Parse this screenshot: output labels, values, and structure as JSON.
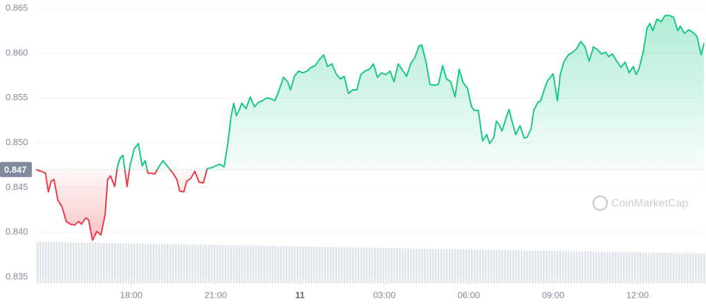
{
  "chart_data": {
    "type": "line",
    "watermark": "CoinMarketCap",
    "baseline": 0.847,
    "color_up": "#16c784",
    "color_down": "#ea3943",
    "grid": true,
    "ylim": [
      0.835,
      0.865
    ],
    "yticks": [
      0.835,
      {
        "value": 0.84,
        "label": "0.840"
      },
      0.845,
      {
        "value": 0.85,
        "label": "0.850"
      },
      0.855,
      {
        "value": 0.86,
        "label": "0.860"
      },
      0.865
    ],
    "xlim": [
      -9.39,
      14.36
    ],
    "xticks": [
      {
        "value": -6,
        "label": "18:00"
      },
      {
        "value": -3,
        "label": "21:00"
      },
      {
        "value": 0,
        "label": "11"
      },
      {
        "value": 3,
        "label": "03:00"
      },
      {
        "value": 6,
        "label": "06:00"
      },
      {
        "value": 9,
        "label": "09:00"
      },
      {
        "value": 12,
        "label": "12:00"
      }
    ],
    "x": [
      -9.39,
      -9.2,
      -9.05,
      -8.95,
      -8.85,
      -8.75,
      -8.61,
      -8.46,
      -8.31,
      -8.16,
      -8.02,
      -7.87,
      -7.77,
      -7.62,
      -7.52,
      -7.38,
      -7.23,
      -7.08,
      -6.93,
      -6.84,
      -6.74,
      -6.59,
      -6.49,
      -6.39,
      -6.3,
      -6.15,
      -6.05,
      -5.9,
      -5.75,
      -5.61,
      -5.51,
      -5.41,
      -5.31,
      -5.16,
      -5.02,
      -4.87,
      -4.72,
      -4.52,
      -4.38,
      -4.28,
      -4.13,
      -4.03,
      -3.89,
      -3.74,
      -3.59,
      -3.44,
      -3.3,
      -3.15,
      -3.0,
      -2.85,
      -2.7,
      -2.56,
      -2.46,
      -2.36,
      -2.26,
      -2.16,
      -2.07,
      -1.92,
      -1.77,
      -1.62,
      -1.48,
      -1.33,
      -1.18,
      -1.03,
      -0.89,
      -0.74,
      -0.59,
      -0.44,
      -0.34,
      -0.2,
      -0.05,
      0.1,
      0.25,
      0.39,
      0.54,
      0.69,
      0.84,
      0.98,
      1.13,
      1.28,
      1.43,
      1.57,
      1.72,
      1.87,
      2.02,
      2.16,
      2.31,
      2.46,
      2.61,
      2.75,
      2.9,
      3.05,
      3.2,
      3.34,
      3.49,
      3.64,
      3.79,
      3.93,
      4.08,
      4.23,
      4.33,
      4.48,
      4.62,
      4.77,
      4.92,
      5.07,
      5.21,
      5.36,
      5.51,
      5.66,
      5.8,
      5.95,
      6.1,
      6.2,
      6.34,
      6.49,
      6.64,
      6.74,
      6.89,
      6.98,
      7.08,
      7.18,
      7.33,
      7.43,
      7.57,
      7.67,
      7.82,
      7.97,
      8.07,
      8.21,
      8.31,
      8.46,
      8.56,
      8.7,
      8.8,
      9.0,
      9.15,
      9.25,
      9.39,
      9.54,
      9.69,
      9.84,
      9.98,
      10.13,
      10.28,
      10.43,
      10.57,
      10.72,
      10.87,
      10.97,
      11.11,
      11.26,
      11.41,
      11.56,
      11.7,
      11.85,
      11.95,
      12.05,
      12.2,
      12.34,
      12.44,
      12.54,
      12.69,
      12.84,
      12.98,
      13.13,
      13.28,
      13.43,
      13.52,
      13.67,
      13.82,
      13.97,
      14.11,
      14.26,
      14.36
    ],
    "values": [
      0.847,
      0.8468,
      0.8466,
      0.8445,
      0.8457,
      0.8459,
      0.8436,
      0.8428,
      0.8412,
      0.8409,
      0.8408,
      0.8412,
      0.8409,
      0.8416,
      0.8414,
      0.8391,
      0.8401,
      0.8397,
      0.842,
      0.8459,
      0.8463,
      0.8451,
      0.8474,
      0.8483,
      0.8486,
      0.8451,
      0.8474,
      0.8493,
      0.8499,
      0.8474,
      0.848,
      0.8466,
      0.8466,
      0.8465,
      0.8473,
      0.848,
      0.8474,
      0.8466,
      0.8459,
      0.8446,
      0.8445,
      0.8457,
      0.846,
      0.8468,
      0.8456,
      0.8455,
      0.8471,
      0.8472,
      0.8474,
      0.8476,
      0.8473,
      0.8501,
      0.8528,
      0.8544,
      0.853,
      0.8537,
      0.8544,
      0.8538,
      0.8551,
      0.854,
      0.8545,
      0.8547,
      0.855,
      0.8549,
      0.8547,
      0.8559,
      0.8573,
      0.8568,
      0.8559,
      0.8574,
      0.858,
      0.8578,
      0.858,
      0.8584,
      0.8586,
      0.8593,
      0.8598,
      0.8585,
      0.8588,
      0.8577,
      0.8571,
      0.8574,
      0.8555,
      0.8559,
      0.8559,
      0.8576,
      0.858,
      0.8582,
      0.8588,
      0.8573,
      0.8578,
      0.8576,
      0.858,
      0.8568,
      0.8588,
      0.8581,
      0.8574,
      0.8588,
      0.8595,
      0.8608,
      0.8609,
      0.859,
      0.8565,
      0.8564,
      0.8565,
      0.8586,
      0.8571,
      0.8568,
      0.8551,
      0.8582,
      0.8567,
      0.8561,
      0.854,
      0.8536,
      0.8536,
      0.8502,
      0.8509,
      0.8499,
      0.8506,
      0.8524,
      0.852,
      0.8513,
      0.8528,
      0.8537,
      0.852,
      0.8509,
      0.8519,
      0.8505,
      0.8506,
      0.8515,
      0.8536,
      0.8545,
      0.8547,
      0.8561,
      0.8569,
      0.8577,
      0.8547,
      0.8576,
      0.8591,
      0.8598,
      0.8601,
      0.8605,
      0.8613,
      0.8607,
      0.8591,
      0.8607,
      0.8604,
      0.8599,
      0.8601,
      0.8596,
      0.8599,
      0.8591,
      0.8584,
      0.859,
      0.8578,
      0.8585,
      0.8576,
      0.8582,
      0.8601,
      0.8628,
      0.8633,
      0.8625,
      0.8638,
      0.8635,
      0.8642,
      0.8642,
      0.864,
      0.8625,
      0.863,
      0.8622,
      0.8626,
      0.8623,
      0.8619,
      0.8598,
      0.8611
    ]
  }
}
